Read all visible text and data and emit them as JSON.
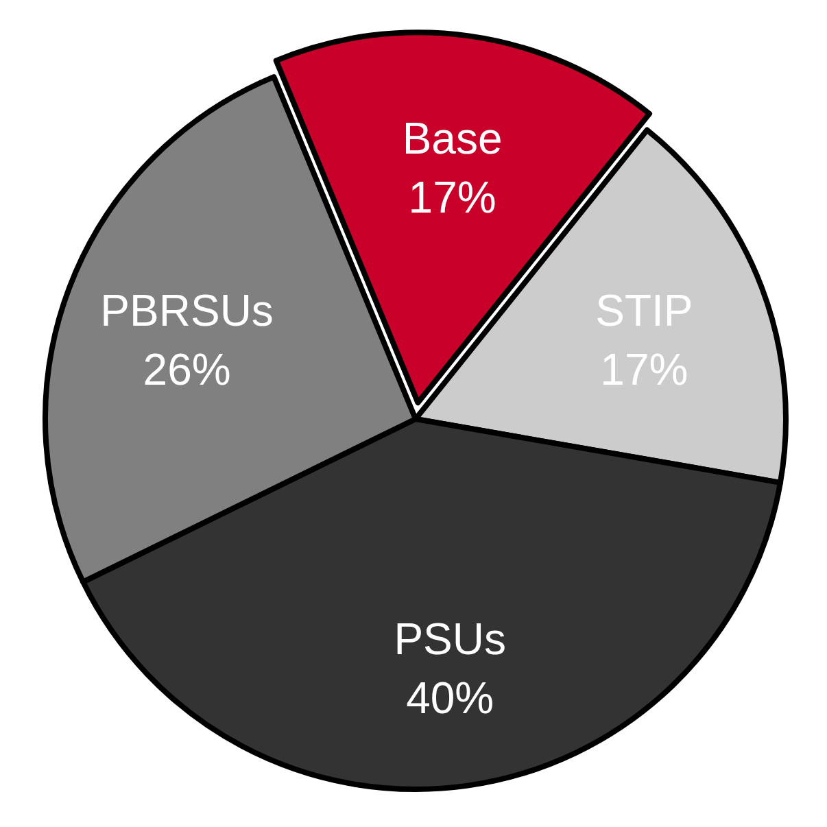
{
  "chart_data": {
    "type": "pie",
    "categories": [
      "Base",
      "STIP",
      "PSUs",
      "PBRSUs"
    ],
    "values": [
      17,
      17,
      40,
      26
    ],
    "colors": [
      "#c8002a",
      "#cccccc",
      "#333333",
      "#808080"
    ],
    "value_labels": [
      "17%",
      "17%",
      "40%",
      "26%"
    ]
  }
}
